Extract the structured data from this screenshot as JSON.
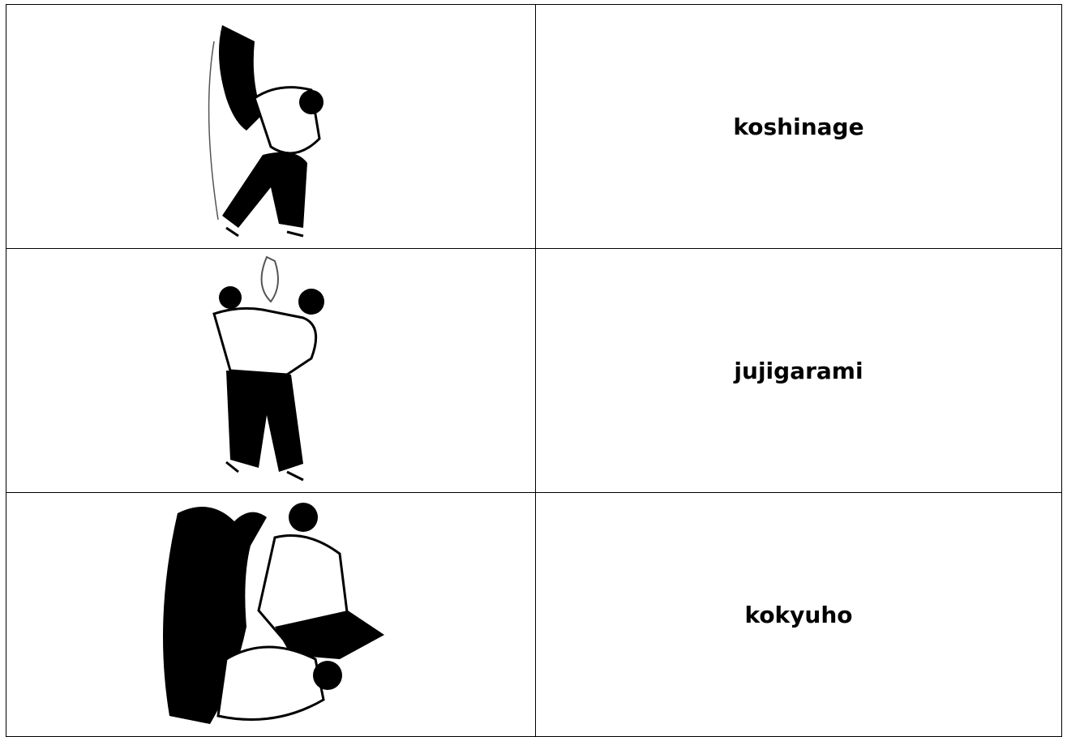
{
  "table": {
    "rows": [
      {
        "label": "koshinage"
      },
      {
        "label": "jujigarami"
      },
      {
        "label": "kokyuho"
      }
    ]
  }
}
